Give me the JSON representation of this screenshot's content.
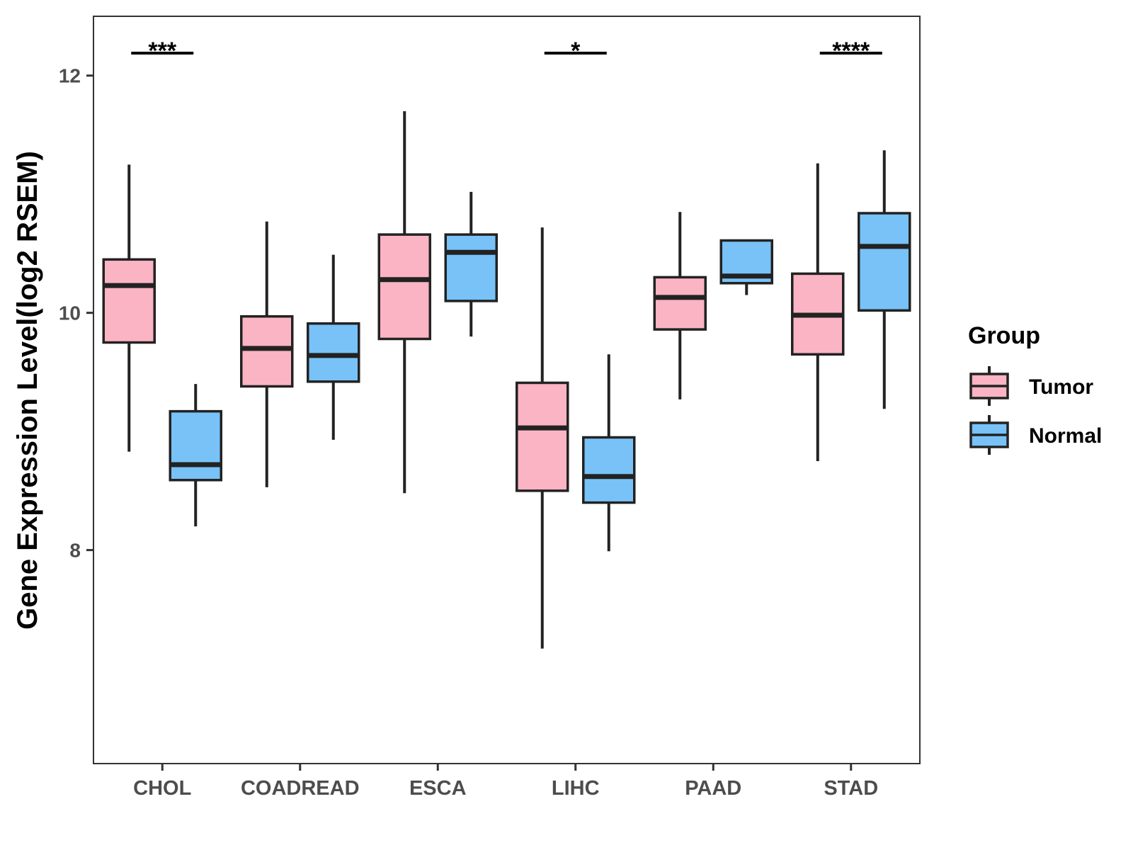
{
  "chart_data": {
    "type": "boxplot",
    "title": "",
    "xlabel": "",
    "ylabel": "Gene Expression Level(log2 RSEM)",
    "ylim": [
      6.2,
      12.5
    ],
    "yticks": [
      8,
      10,
      12
    ],
    "grid": false,
    "legend_position": "right",
    "legend_title": "Group",
    "categories": [
      "CHOL",
      "COADREAD",
      "ESCA",
      "LIHC",
      "PAAD",
      "STAD"
    ],
    "series": [
      {
        "name": "Tumor",
        "color": "#fbb4c4",
        "boxes": [
          {
            "category": "CHOL",
            "min": 8.83,
            "q1": 9.75,
            "median": 10.23,
            "q3": 10.45,
            "max": 11.25
          },
          {
            "category": "COADREAD",
            "min": 8.53,
            "q1": 9.38,
            "median": 9.7,
            "q3": 9.97,
            "max": 10.77
          },
          {
            "category": "ESCA",
            "min": 8.48,
            "q1": 9.78,
            "median": 10.28,
            "q3": 10.66,
            "max": 11.7
          },
          {
            "category": "LIHC",
            "min": 7.17,
            "q1": 8.5,
            "median": 9.03,
            "q3": 9.41,
            "max": 10.72
          },
          {
            "category": "PAAD",
            "min": 9.27,
            "q1": 9.86,
            "median": 10.13,
            "q3": 10.3,
            "max": 10.85
          },
          {
            "category": "STAD",
            "min": 8.75,
            "q1": 9.65,
            "median": 9.98,
            "q3": 10.33,
            "max": 11.26
          }
        ]
      },
      {
        "name": "Normal",
        "color": "#78c2f8",
        "boxes": [
          {
            "category": "CHOL",
            "min": 8.2,
            "q1": 8.59,
            "median": 8.72,
            "q3": 9.17,
            "max": 9.4
          },
          {
            "category": "COADREAD",
            "min": 8.93,
            "q1": 9.42,
            "median": 9.64,
            "q3": 9.91,
            "max": 10.49
          },
          {
            "category": "ESCA",
            "min": 9.8,
            "q1": 10.1,
            "median": 10.51,
            "q3": 10.66,
            "max": 11.02
          },
          {
            "category": "LIHC",
            "min": 7.99,
            "q1": 8.4,
            "median": 8.62,
            "q3": 8.95,
            "max": 9.65
          },
          {
            "category": "PAAD",
            "min": 10.15,
            "q1": 10.25,
            "median": 10.31,
            "q3": 10.61,
            "max": 10.61
          },
          {
            "category": "STAD",
            "min": 9.19,
            "q1": 10.02,
            "median": 10.56,
            "q3": 10.84,
            "max": 11.37
          }
        ]
      }
    ],
    "significance": [
      {
        "category": "CHOL",
        "label": "***"
      },
      {
        "category": "LIHC",
        "label": "*"
      },
      {
        "category": "STAD",
        "label": "****"
      }
    ]
  }
}
